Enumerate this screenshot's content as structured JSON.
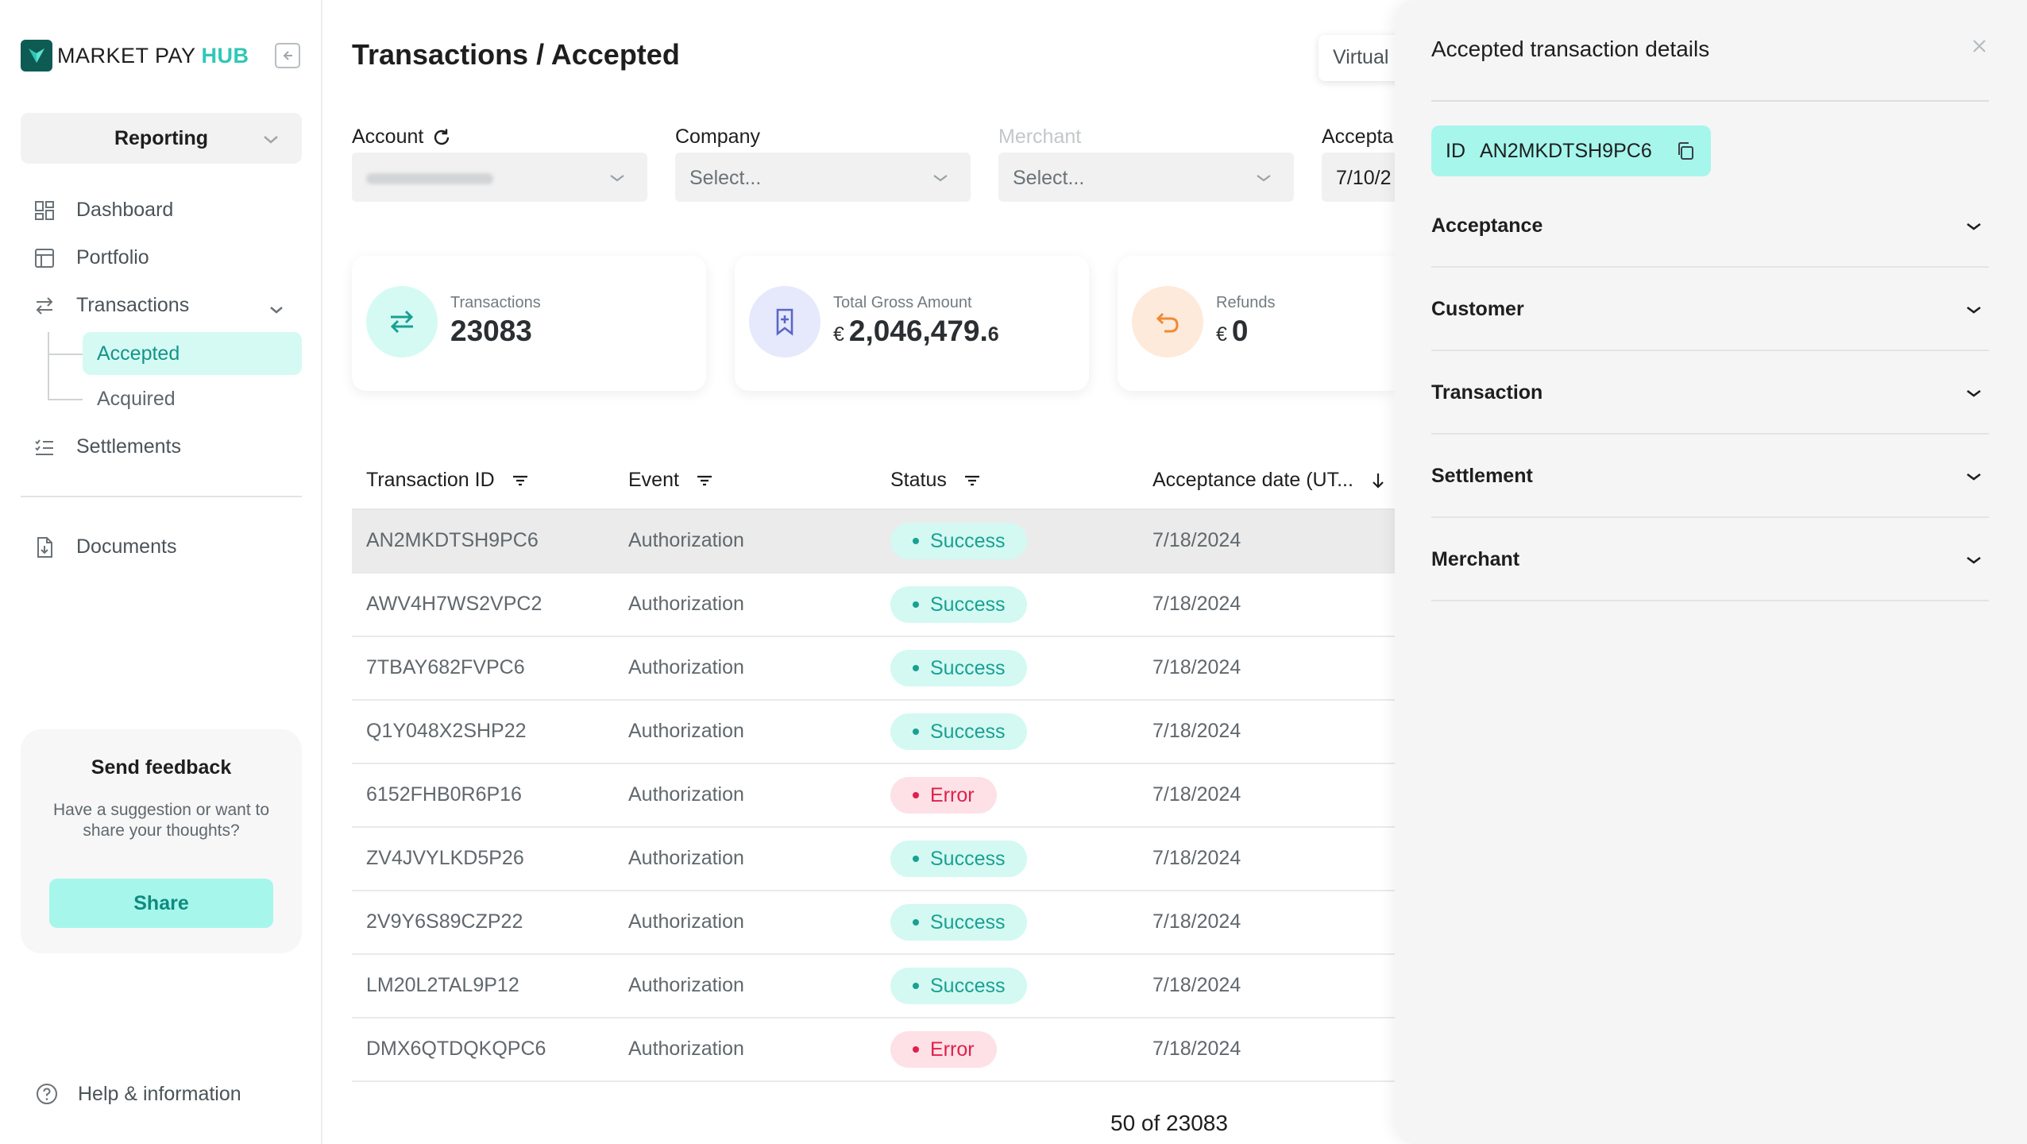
{
  "app": {
    "logo_text_main": "MARKET PAY",
    "logo_text_accent": "HUB",
    "section_selector": "Reporting"
  },
  "sidebar": {
    "dashboard": "Dashboard",
    "portfolio": "Portfolio",
    "transactions": "Transactions",
    "accepted": "Accepted",
    "acquired": "Acquired",
    "settlements": "Settlements",
    "documents": "Documents",
    "help": "Help & information"
  },
  "feedback": {
    "title": "Send feedback",
    "text": "Have a suggestion or want to share your thoughts?",
    "button": "Share"
  },
  "header": {
    "title": "Transactions / Accepted",
    "virtual_button": "Virtual"
  },
  "filters": {
    "account_label": "Account",
    "company_label": "Company",
    "company_placeholder": "Select...",
    "merchant_label": "Merchant",
    "merchant_placeholder": "Select...",
    "acceptance_label": "Accepta",
    "acceptance_value": "7/10/2"
  },
  "cards": {
    "transactions_label": "Transactions",
    "transactions_value": "23083",
    "gross_label": "Total Gross Amount",
    "gross_currency": "€",
    "gross_value": "2,046,479.",
    "gross_decimal": "6",
    "refunds_label": "Refunds",
    "refunds_currency": "€",
    "refunds_value": "0"
  },
  "table": {
    "columns": {
      "id": "Transaction ID",
      "event": "Event",
      "status": "Status",
      "date": "Acceptance date (UT..."
    },
    "rows": [
      {
        "id": "AN2MKDTSH9PC6",
        "event": "Authorization",
        "status": "Success",
        "date": "7/18/2024"
      },
      {
        "id": "AWV4H7WS2VPC2",
        "event": "Authorization",
        "status": "Success",
        "date": "7/18/2024"
      },
      {
        "id": "7TBAY682FVPC6",
        "event": "Authorization",
        "status": "Success",
        "date": "7/18/2024"
      },
      {
        "id": "Q1Y048X2SHP22",
        "event": "Authorization",
        "status": "Success",
        "date": "7/18/2024"
      },
      {
        "id": "6152FHB0R6P16",
        "event": "Authorization",
        "status": "Error",
        "date": "7/18/2024"
      },
      {
        "id": "ZV4JVYLKD5P26",
        "event": "Authorization",
        "status": "Success",
        "date": "7/18/2024"
      },
      {
        "id": "2V9Y6S89CZP22",
        "event": "Authorization",
        "status": "Success",
        "date": "7/18/2024"
      },
      {
        "id": "LM20L2TAL9P12",
        "event": "Authorization",
        "status": "Success",
        "date": "7/18/2024"
      },
      {
        "id": "DMX6QTDQKQPC6",
        "event": "Authorization",
        "status": "Error",
        "date": "7/18/2024"
      }
    ],
    "pagination": "50 of 23083"
  },
  "panel": {
    "title": "Accepted transaction details",
    "id_label": "ID",
    "id_value": "AN2MKDTSH9PC6",
    "sections": [
      "Acceptance",
      "Customer",
      "Transaction",
      "Settlement",
      "Merchant"
    ]
  },
  "colors": {
    "accent": "#2fc8b6",
    "accent_light": "#a6f6ec",
    "success": "#1aa093",
    "error": "#e01f4b"
  }
}
